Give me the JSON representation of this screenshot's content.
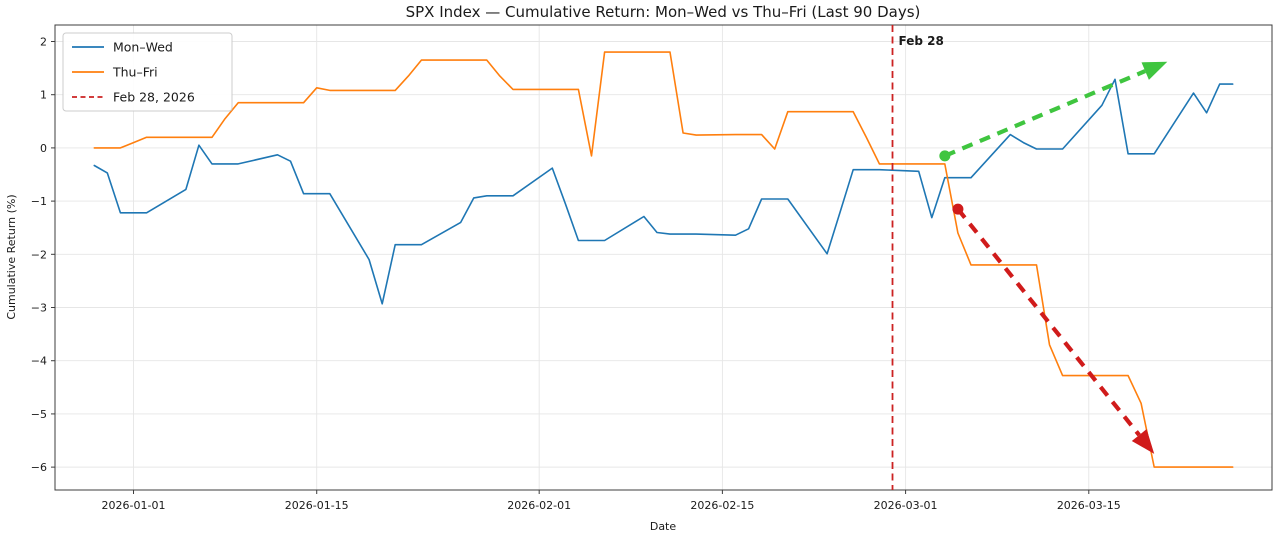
{
  "chart_data": {
    "type": "line",
    "title": "SPX Index — Cumulative Return: Mon–Wed vs Thu–Fri (Last 90 Days)",
    "xlabel": "Date",
    "ylabel": "Cumulative Return (%)",
    "grid": true,
    "legend_position": "upper-left",
    "xlim": [
      "2025-12-26",
      "2026-03-29"
    ],
    "ylim": [
      -6.43,
      2.31
    ],
    "x_ticks": [
      {
        "date": "2026-01-01",
        "label": "2026-01-01"
      },
      {
        "date": "2026-01-15",
        "label": "2026-01-15"
      },
      {
        "date": "2026-02-01",
        "label": "2026-02-01"
      },
      {
        "date": "2026-02-15",
        "label": "2026-02-15"
      },
      {
        "date": "2026-03-01",
        "label": "2026-03-01"
      },
      {
        "date": "2026-03-15",
        "label": "2026-03-15"
      }
    ],
    "y_ticks": [
      {
        "value": 2,
        "label": "2"
      },
      {
        "value": 1,
        "label": "1"
      },
      {
        "value": 0,
        "label": "0"
      },
      {
        "value": -1,
        "label": "−1"
      },
      {
        "value": -2,
        "label": "−2"
      },
      {
        "value": -3,
        "label": "−3"
      },
      {
        "value": -4,
        "label": "−4"
      },
      {
        "value": -5,
        "label": "−5"
      },
      {
        "value": -6,
        "label": "−6"
      }
    ],
    "legend": {
      "entries": [
        {
          "label": "Mon–Wed",
          "color": "#1f77b4",
          "style": "solid"
        },
        {
          "label": "Thu–Fri",
          "color": "#ff7f0e",
          "style": "solid"
        },
        {
          "label": "Feb 28, 2026",
          "color": "#cc2222",
          "style": "dashed"
        }
      ]
    },
    "vline": {
      "date": "2026-02-28",
      "label": "Feb 28",
      "color": "#cc2222"
    },
    "annotations": [
      {
        "type": "arrow",
        "name": "uptrend-arrow",
        "color": "#3fc53f",
        "from": [
          "2026-03-04",
          -0.15
        ],
        "to": [
          "2026-03-21",
          1.62
        ]
      },
      {
        "type": "arrow",
        "name": "downtrend-arrow",
        "color": "#d01b1b",
        "from": [
          "2026-03-05",
          -1.15
        ],
        "to": [
          "2026-03-20",
          -5.75
        ]
      }
    ],
    "series": [
      {
        "name": "Mon–Wed",
        "color": "#1f77b4",
        "points": [
          [
            "2025-12-29",
            -0.33
          ],
          [
            "2025-12-30",
            -0.47
          ],
          [
            "2025-12-31",
            -1.22
          ],
          [
            "2026-01-01",
            -1.22
          ],
          [
            "2026-01-02",
            -1.22
          ],
          [
            "2026-01-05",
            -0.78
          ],
          [
            "2026-01-06",
            0.05
          ],
          [
            "2026-01-07",
            -0.3
          ],
          [
            "2026-01-08",
            -0.3
          ],
          [
            "2026-01-09",
            -0.3
          ],
          [
            "2026-01-12",
            -0.13
          ],
          [
            "2026-01-13",
            -0.25
          ],
          [
            "2026-01-14",
            -0.86
          ],
          [
            "2026-01-15",
            -0.86
          ],
          [
            "2026-01-16",
            -0.86
          ],
          [
            "2026-01-19",
            -2.1
          ],
          [
            "2026-01-20",
            -2.93
          ],
          [
            "2026-01-21",
            -1.82
          ],
          [
            "2026-01-22",
            -1.82
          ],
          [
            "2026-01-23",
            -1.82
          ],
          [
            "2026-01-26",
            -1.4
          ],
          [
            "2026-01-27",
            -0.94
          ],
          [
            "2026-01-28",
            -0.9
          ],
          [
            "2026-01-29",
            -0.9
          ],
          [
            "2026-01-30",
            -0.9
          ],
          [
            "2026-02-02",
            -0.38
          ],
          [
            "2026-02-03",
            -1.05
          ],
          [
            "2026-02-04",
            -1.74
          ],
          [
            "2026-02-05",
            -1.74
          ],
          [
            "2026-02-06",
            -1.74
          ],
          [
            "2026-02-09",
            -1.29
          ],
          [
            "2026-02-10",
            -1.59
          ],
          [
            "2026-02-11",
            -1.62
          ],
          [
            "2026-02-12",
            -1.62
          ],
          [
            "2026-02-13",
            -1.62
          ],
          [
            "2026-02-16",
            -1.64
          ],
          [
            "2026-02-17",
            -1.52
          ],
          [
            "2026-02-18",
            -0.96
          ],
          [
            "2026-02-19",
            -0.96
          ],
          [
            "2026-02-20",
            -0.96
          ],
          [
            "2026-02-23",
            -1.99
          ],
          [
            "2026-02-24",
            -1.2
          ],
          [
            "2026-02-25",
            -0.41
          ],
          [
            "2026-02-26",
            -0.41
          ],
          [
            "2026-02-27",
            -0.41
          ],
          [
            "2026-03-02",
            -0.44
          ],
          [
            "2026-03-03",
            -1.31
          ],
          [
            "2026-03-04",
            -0.56
          ],
          [
            "2026-03-05",
            -0.56
          ],
          [
            "2026-03-06",
            -0.56
          ],
          [
            "2026-03-09",
            0.25
          ],
          [
            "2026-03-10",
            0.1
          ],
          [
            "2026-03-11",
            -0.02
          ],
          [
            "2026-03-12",
            -0.02
          ],
          [
            "2026-03-13",
            -0.02
          ],
          [
            "2026-03-16",
            0.8
          ],
          [
            "2026-03-17",
            1.29
          ],
          [
            "2026-03-18",
            -0.11
          ],
          [
            "2026-03-19",
            -0.11
          ],
          [
            "2026-03-20",
            -0.11
          ],
          [
            "2026-03-23",
            1.03
          ],
          [
            "2026-03-24",
            0.66
          ],
          [
            "2026-03-25",
            1.2
          ],
          [
            "2026-03-26",
            1.2
          ]
        ]
      },
      {
        "name": "Thu–Fri",
        "color": "#ff7f0e",
        "points": [
          [
            "2025-12-29",
            0.0
          ],
          [
            "2025-12-30",
            0.0
          ],
          [
            "2025-12-31",
            0.0
          ],
          [
            "2026-01-01",
            0.1
          ],
          [
            "2026-01-02",
            0.2
          ],
          [
            "2026-01-05",
            0.2
          ],
          [
            "2026-01-06",
            0.2
          ],
          [
            "2026-01-07",
            0.2
          ],
          [
            "2026-01-08",
            0.55
          ],
          [
            "2026-01-09",
            0.85
          ],
          [
            "2026-01-12",
            0.85
          ],
          [
            "2026-01-13",
            0.85
          ],
          [
            "2026-01-14",
            0.85
          ],
          [
            "2026-01-15",
            1.13
          ],
          [
            "2026-01-16",
            1.08
          ],
          [
            "2026-01-19",
            1.08
          ],
          [
            "2026-01-20",
            1.08
          ],
          [
            "2026-01-21",
            1.08
          ],
          [
            "2026-01-22",
            1.35
          ],
          [
            "2026-01-23",
            1.65
          ],
          [
            "2026-01-26",
            1.65
          ],
          [
            "2026-01-27",
            1.65
          ],
          [
            "2026-01-28",
            1.65
          ],
          [
            "2026-01-29",
            1.35
          ],
          [
            "2026-01-30",
            1.1
          ],
          [
            "2026-02-02",
            1.1
          ],
          [
            "2026-02-03",
            1.1
          ],
          [
            "2026-02-04",
            1.1
          ],
          [
            "2026-02-05",
            -0.15
          ],
          [
            "2026-02-06",
            1.8
          ],
          [
            "2026-02-09",
            1.8
          ],
          [
            "2026-02-10",
            1.8
          ],
          [
            "2026-02-11",
            1.8
          ],
          [
            "2026-02-12",
            0.28
          ],
          [
            "2026-02-13",
            0.24
          ],
          [
            "2026-02-16",
            0.25
          ],
          [
            "2026-02-17",
            0.25
          ],
          [
            "2026-02-18",
            0.25
          ],
          [
            "2026-02-19",
            -0.02
          ],
          [
            "2026-02-20",
            0.68
          ],
          [
            "2026-02-23",
            0.68
          ],
          [
            "2026-02-24",
            0.68
          ],
          [
            "2026-02-25",
            0.68
          ],
          [
            "2026-02-26",
            0.2
          ],
          [
            "2026-02-27",
            -0.3
          ],
          [
            "2026-03-02",
            -0.3
          ],
          [
            "2026-03-03",
            -0.3
          ],
          [
            "2026-03-04",
            -0.3
          ],
          [
            "2026-03-05",
            -1.6
          ],
          [
            "2026-03-06",
            -2.2
          ],
          [
            "2026-03-09",
            -2.2
          ],
          [
            "2026-03-10",
            -2.2
          ],
          [
            "2026-03-11",
            -2.2
          ],
          [
            "2026-03-12",
            -3.7
          ],
          [
            "2026-03-13",
            -4.28
          ],
          [
            "2026-03-16",
            -4.28
          ],
          [
            "2026-03-17",
            -4.28
          ],
          [
            "2026-03-18",
            -4.28
          ],
          [
            "2026-03-19",
            -4.8
          ],
          [
            "2026-03-20",
            -6.0
          ],
          [
            "2026-03-23",
            -6.0
          ],
          [
            "2026-03-24",
            -6.0
          ],
          [
            "2026-03-25",
            -6.0
          ],
          [
            "2026-03-26",
            -6.0
          ]
        ]
      }
    ]
  }
}
